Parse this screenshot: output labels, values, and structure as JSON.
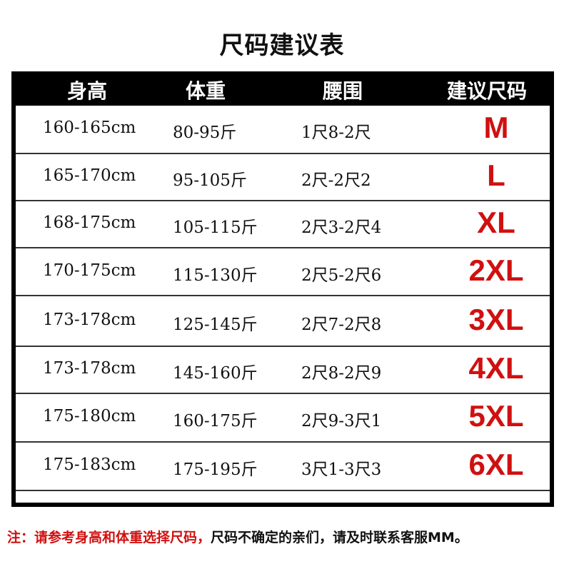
{
  "title": "尺码建议表",
  "headers": [
    "身高",
    "体重",
    "腰围",
    "建议尺码"
  ],
  "rows": [
    {
      "height": "160-165cm",
      "weight": "80-95斤",
      "waist": "1尺8-2尺",
      "size": "M"
    },
    {
      "height": "165-170cm",
      "weight": "95-105斤",
      "waist": "2尺-2尺2",
      "size": "L"
    },
    {
      "height": "168-175cm",
      "weight": "105-115斤",
      "waist": "2尺3-2尺4",
      "size": "XL"
    },
    {
      "height": "170-175cm",
      "weight": "115-130斤",
      "waist": "2尺5-2尺6",
      "size": "2XL"
    },
    {
      "height": "173-178cm",
      "weight": "125-145斤",
      "waist": "2尺7-2尺8",
      "size": "3XL"
    },
    {
      "height": "173-178cm",
      "weight": "145-160斤",
      "waist": "2尺8-2尺9",
      "size": "4XL"
    },
    {
      "height": "175-180cm",
      "weight": "160-175斤",
      "waist": "2尺9-3尺1",
      "size": "5XL"
    },
    {
      "height": "175-183cm",
      "weight": "175-195斤",
      "waist": "3尺1-3尺3",
      "size": "6XL"
    }
  ],
  "note": {
    "red": "注：请参考身高和体重选择尺码，",
    "black": "尺码不确定的亲们，请及时联系客服MM。"
  },
  "colors": {
    "accent": "#d01010",
    "header_bg": "#000000"
  }
}
